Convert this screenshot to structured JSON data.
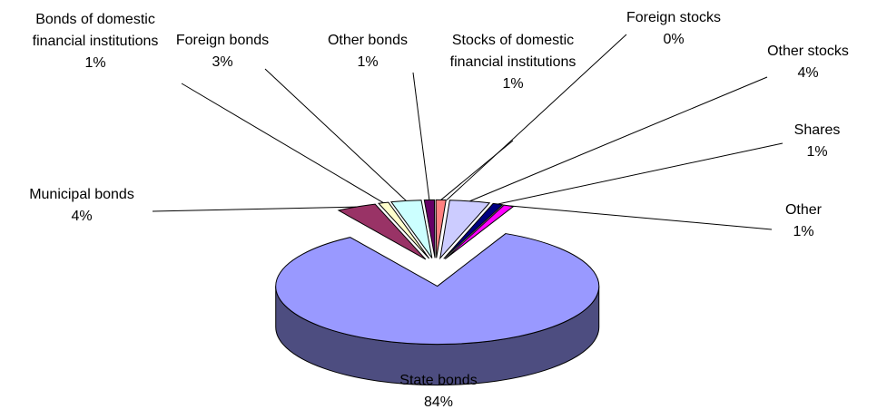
{
  "chart_data": {
    "type": "pie3d",
    "categories": [
      "State bonds",
      "Municipal bonds",
      "Bonds of domestic financial institutions",
      "Foreign bonds",
      "Other bonds",
      "Stocks of domestic financial institutions",
      "Foreign stocks",
      "Other stocks",
      "Shares",
      "Other"
    ],
    "values": [
      84,
      4,
      1,
      3,
      1,
      1,
      0,
      4,
      1,
      1
    ],
    "value_labels": [
      "84%",
      "4%",
      "1%",
      "3%",
      "1%",
      "1%",
      "0%",
      "4%",
      "1%",
      "1%"
    ],
    "colors": [
      "#9999ff",
      "#993366",
      "#ffffcc",
      "#ccffff",
      "#660066",
      "#ff8080",
      "#0066cc",
      "#ccccff",
      "#000080",
      "#ff00ff"
    ]
  }
}
